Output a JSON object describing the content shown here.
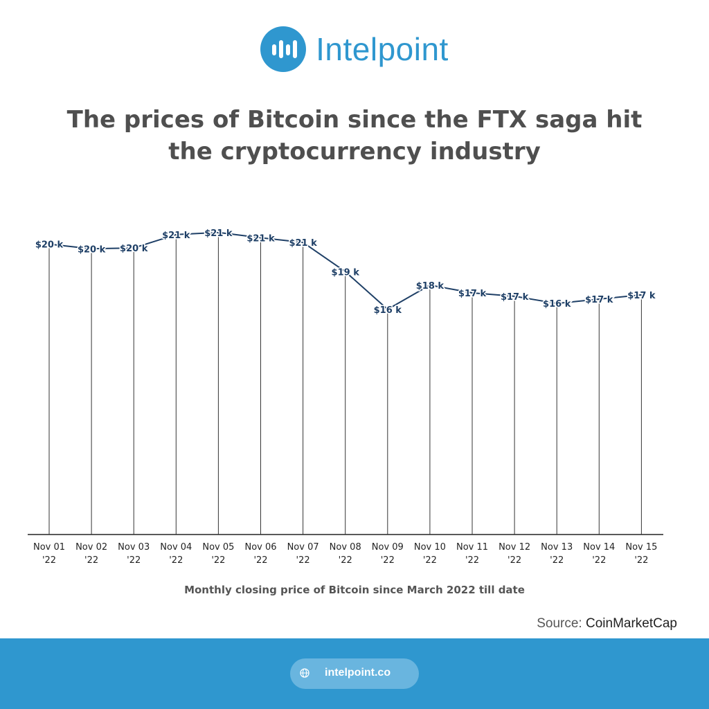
{
  "brand": {
    "name": "Intelpoint"
  },
  "title": "The prices of Bitcoin since the FTX saga hit the cryptocurrency industry",
  "chart_data": {
    "type": "line",
    "title": "",
    "xlabel": "",
    "ylabel": "",
    "categories": [
      "Nov 01 '22",
      "Nov 02 '22",
      "Nov 03 '22",
      "Nov 04 '22",
      "Nov 05 '22",
      "Nov 06 '22",
      "Nov 07 '22",
      "Nov 08 '22",
      "Nov 09 '22",
      "Nov 10 '22",
      "Nov 11 '22",
      "Nov 12 '22",
      "Nov 13 '22",
      "Nov 14 '22",
      "Nov 15 '22"
    ],
    "values": [
      20480,
      20150,
      20210,
      21150,
      21300,
      20930,
      20600,
      18540,
      15880,
      17590,
      17040,
      16800,
      16300,
      16600,
      16900
    ],
    "data_labels": [
      "$20 k",
      "$20 k",
      "$20 k",
      "$21 k",
      "$21 k",
      "$21 k",
      "$21 k",
      "$19 k",
      "$16 k",
      "$18 k",
      "$17 k",
      "$17 k",
      "$16 k",
      "$17 k",
      "$17 k"
    ],
    "ylim": [
      0,
      25000
    ],
    "grid": false,
    "drop_lines": true,
    "line_color": "#1e3f66",
    "label_color": "#1e3f66"
  },
  "caption": "Monthly closing price of Bitcoin since March 2022 till date",
  "source": {
    "label": "Source:",
    "name": "CoinMarketCap"
  },
  "footer": {
    "website": "intelpoint.co",
    "icon": "globe-icon"
  },
  "colors": {
    "brand": "#2f97cf",
    "title": "#4f4f4f"
  }
}
